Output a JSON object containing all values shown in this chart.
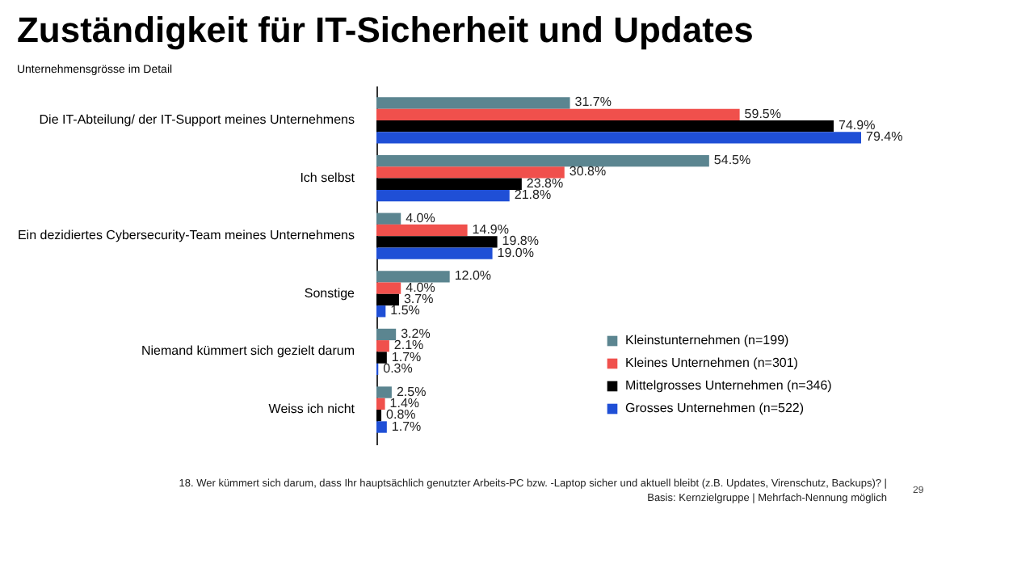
{
  "chart_data": {
    "type": "bar",
    "orientation": "horizontal",
    "title": "Zuständigkeit für IT-Sicherheit und Updates",
    "subtitle": "Unternehmensgrösse im Detail",
    "categories": [
      "Die IT-Abteilung/ der IT-Support meines Unternehmens",
      "Ich selbst",
      "Ein dezidiertes Cybersecurity-Team meines Unternehmens",
      "Sonstige",
      "Niemand kümmert sich gezielt darum",
      "Weiss ich nicht"
    ],
    "series": [
      {
        "name": "Kleinstunternehmen (n=199)",
        "color": "#5b8590",
        "values": [
          31.7,
          54.5,
          4.0,
          12.0,
          3.2,
          2.5
        ],
        "value_labels": [
          "31.7%",
          "54.5%",
          "4.0%",
          "12.0%",
          "3.2%",
          "2.5%"
        ]
      },
      {
        "name": "Kleines Unternehmen (n=301)",
        "color": "#f0504c",
        "values": [
          59.5,
          30.8,
          14.9,
          4.0,
          2.1,
          1.4
        ],
        "value_labels": [
          "59.5%",
          "30.8%",
          "14.9%",
          "4.0%",
          "2.1%",
          "1.4%"
        ]
      },
      {
        "name": "Mittelgrosses Unternehmen (n=346)",
        "color": "#000000",
        "values": [
          74.9,
          23.8,
          19.8,
          3.7,
          1.7,
          0.8
        ],
        "value_labels": [
          "74.9%",
          "23.8%",
          "19.8%",
          "3.7%",
          "1.7%",
          "0.8%"
        ]
      },
      {
        "name": "Grosses Unternehmen (n=522)",
        "color": "#1f4fd6",
        "values": [
          79.4,
          21.8,
          19.0,
          1.5,
          0.3,
          1.7
        ],
        "value_labels": [
          "79.4%",
          "21.8%",
          "19.0%",
          "1.5%",
          "0.3%",
          "1.7%"
        ]
      }
    ],
    "legend": "bottom right",
    "tick_labels": "y",
    "annotations": [
      "18. Wer kümmert sich darum, dass Ihr hauptsächlich genutzter Arbeits-PC bzw. -Laptop sicher und aktuell bleibt (z.B. Updates, Virenschutz, Backups)? |",
      "Basis: Kernzielgruppe | Mehrfach-Nennung möglich",
      "29"
    ]
  }
}
